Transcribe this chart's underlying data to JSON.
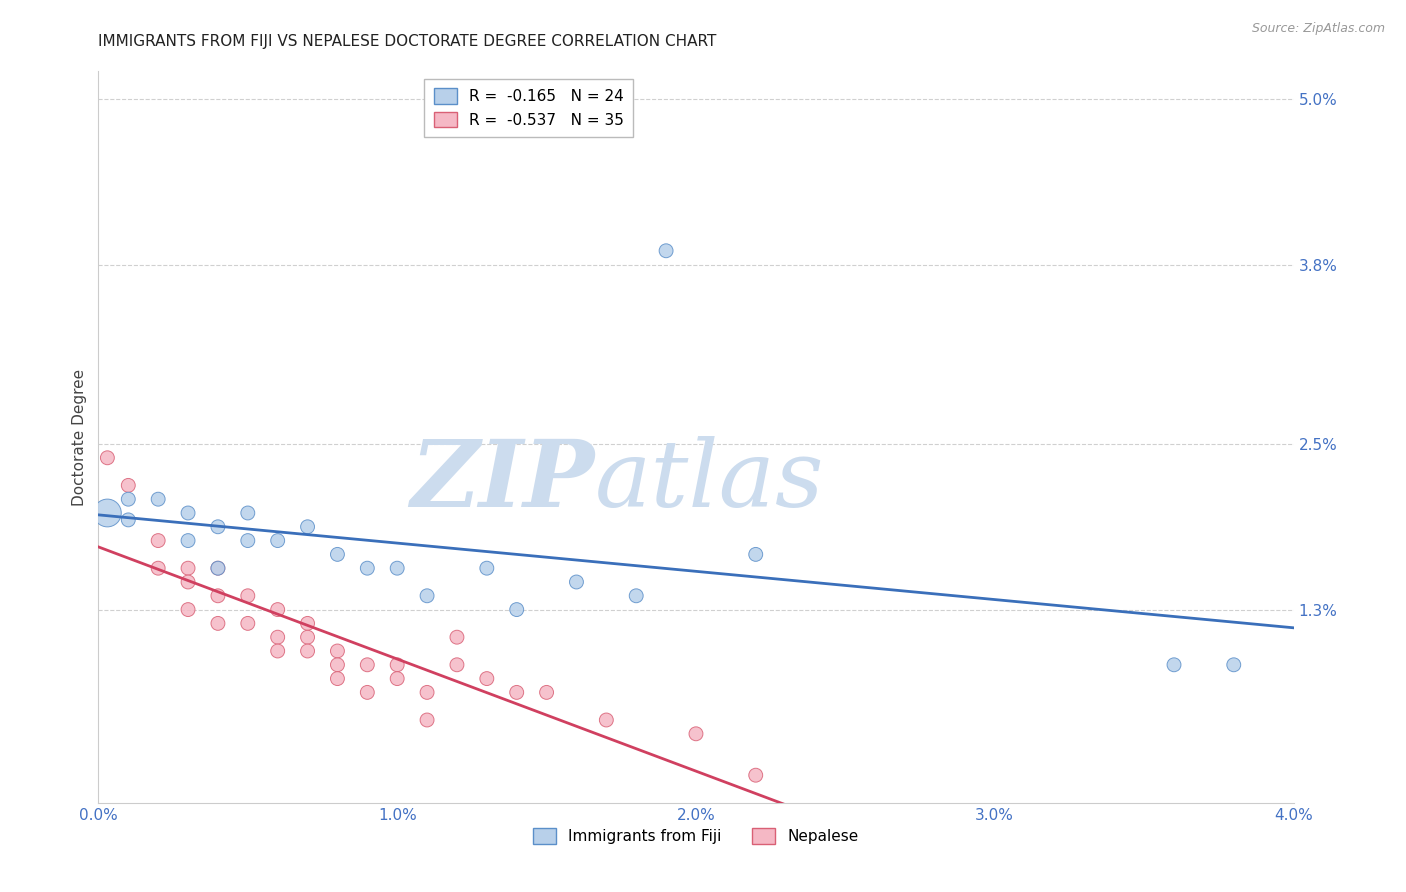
{
  "title": "IMMIGRANTS FROM FIJI VS NEPALESE DOCTORATE DEGREE CORRELATION CHART",
  "source": "Source: ZipAtlas.com",
  "ylabel": "Doctorate Degree",
  "xlim": [
    0.0,
    0.04
  ],
  "ylim": [
    -0.001,
    0.052
  ],
  "yticks": [
    0.013,
    0.025,
    0.038,
    0.05
  ],
  "ytick_labels": [
    "1.3%",
    "2.5%",
    "3.8%",
    "5.0%"
  ],
  "xticks": [
    0.0,
    0.01,
    0.02,
    0.03,
    0.04
  ],
  "xtick_labels": [
    "0.0%",
    "1.0%",
    "2.0%",
    "3.0%",
    "4.0%"
  ],
  "series1_label": "Immigrants from Fiji",
  "series1_R": -0.165,
  "series1_N": 24,
  "series1_face_color": "#b8d0ea",
  "series1_edge_color": "#5b8fc9",
  "series1_line_color": "#3a6fba",
  "series2_label": "Nepalese",
  "series2_R": -0.537,
  "series2_N": 35,
  "series2_face_color": "#f5b8c5",
  "series2_edge_color": "#d96075",
  "series2_line_color": "#d04060",
  "blue_x": [
    0.0003,
    0.001,
    0.001,
    0.002,
    0.003,
    0.003,
    0.004,
    0.004,
    0.005,
    0.005,
    0.006,
    0.007,
    0.008,
    0.009,
    0.01,
    0.011,
    0.013,
    0.014,
    0.016,
    0.018,
    0.019,
    0.022,
    0.036,
    0.038
  ],
  "blue_y": [
    0.02,
    0.0195,
    0.021,
    0.021,
    0.02,
    0.018,
    0.019,
    0.016,
    0.02,
    0.018,
    0.018,
    0.019,
    0.017,
    0.016,
    0.016,
    0.014,
    0.016,
    0.013,
    0.015,
    0.014,
    0.039,
    0.017,
    0.009,
    0.009
  ],
  "blue_sizes": [
    400,
    100,
    100,
    100,
    100,
    100,
    100,
    100,
    100,
    100,
    100,
    100,
    100,
    100,
    100,
    100,
    100,
    100,
    100,
    100,
    100,
    100,
    100,
    100
  ],
  "pink_x": [
    0.0003,
    0.001,
    0.002,
    0.002,
    0.003,
    0.003,
    0.003,
    0.004,
    0.004,
    0.004,
    0.005,
    0.005,
    0.006,
    0.006,
    0.006,
    0.007,
    0.007,
    0.007,
    0.008,
    0.008,
    0.008,
    0.009,
    0.009,
    0.01,
    0.01,
    0.011,
    0.011,
    0.012,
    0.012,
    0.013,
    0.014,
    0.015,
    0.017,
    0.02,
    0.022
  ],
  "pink_y": [
    0.024,
    0.022,
    0.018,
    0.016,
    0.016,
    0.015,
    0.013,
    0.016,
    0.014,
    0.012,
    0.014,
    0.012,
    0.013,
    0.011,
    0.01,
    0.012,
    0.011,
    0.01,
    0.01,
    0.009,
    0.008,
    0.009,
    0.007,
    0.009,
    0.008,
    0.007,
    0.005,
    0.011,
    0.009,
    0.008,
    0.007,
    0.007,
    0.005,
    0.004,
    0.001
  ],
  "pink_sizes": [
    100,
    100,
    100,
    100,
    100,
    100,
    100,
    100,
    100,
    100,
    100,
    100,
    100,
    100,
    100,
    100,
    100,
    100,
    100,
    100,
    100,
    100,
    100,
    100,
    100,
    100,
    100,
    100,
    100,
    100,
    100,
    100,
    100,
    100,
    100
  ],
  "watermark_zip": "ZIP",
  "watermark_atlas": "atlas",
  "watermark_color_zip": "#ccdcee",
  "watermark_color_atlas": "#ccdcee",
  "background_color": "#ffffff",
  "title_fontsize": 11,
  "axis_tick_color": "#4472c4",
  "grid_color": "#d0d0d0",
  "spine_color": "#cccccc"
}
